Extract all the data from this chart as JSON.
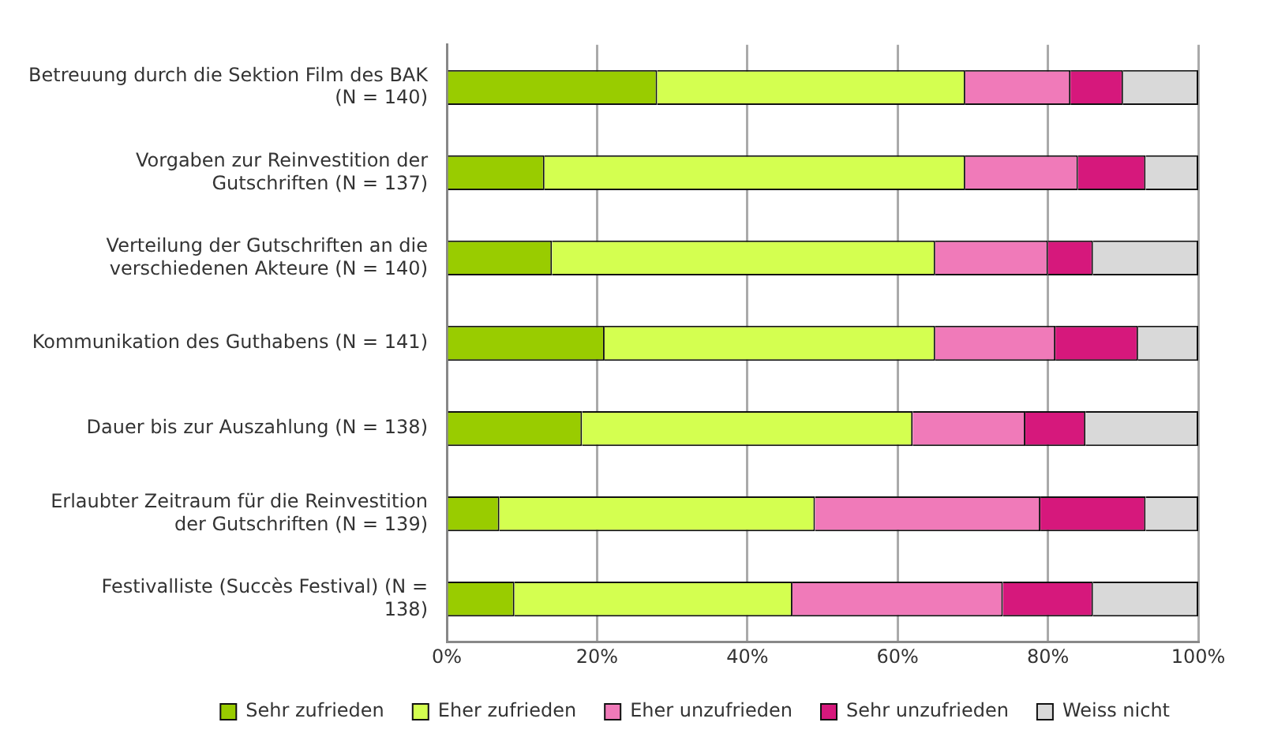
{
  "chart_data": {
    "type": "bar",
    "orientation": "horizontal",
    "stacked": true,
    "categories": [
      "Betreuung durch die Sektion Film des BAK (N = 140)",
      "Vorgaben zur Reinvestition der Gutschriften (N = 137)",
      "Verteilung der Gutschriften an die verschiedenen Akteure (N = 140)",
      "Kommunikation des Guthabens (N = 141)",
      "Dauer bis zur Auszahlung (N = 138)",
      "Erlaubter Zeitraum für die Reinvestition der Gutschriften (N = 139)",
      "Festivalliste (Succès Festival) (N = 138)"
    ],
    "series": [
      {
        "name": "Sehr zufrieden",
        "color": "#99cc00",
        "values": [
          28,
          13,
          14,
          21,
          18,
          7,
          9
        ]
      },
      {
        "name": "Eher zufrieden",
        "color": "#d4ff50",
        "values": [
          41,
          56,
          51,
          44,
          44,
          42,
          37
        ]
      },
      {
        "name": "Eher unzufrieden",
        "color": "#f07ab9",
        "values": [
          14,
          15,
          15,
          16,
          15,
          30,
          28
        ]
      },
      {
        "name": "Sehr unzufrieden",
        "color": "#d6187c",
        "values": [
          7,
          9,
          6,
          11,
          8,
          14,
          12
        ]
      },
      {
        "name": "Weiss nicht",
        "color": "#d9d9d9",
        "values": [
          10,
          7,
          14,
          8,
          15,
          7,
          14
        ]
      }
    ],
    "xlim": [
      0,
      100
    ],
    "xticks": [
      {
        "value": 0,
        "label": "0%"
      },
      {
        "value": 20,
        "label": "20%"
      },
      {
        "value": 40,
        "label": "40%"
      },
      {
        "value": 60,
        "label": "60%"
      },
      {
        "value": 80,
        "label": "80%"
      },
      {
        "value": 100,
        "label": "100%"
      }
    ],
    "grid": "x",
    "legend": "bottom"
  }
}
